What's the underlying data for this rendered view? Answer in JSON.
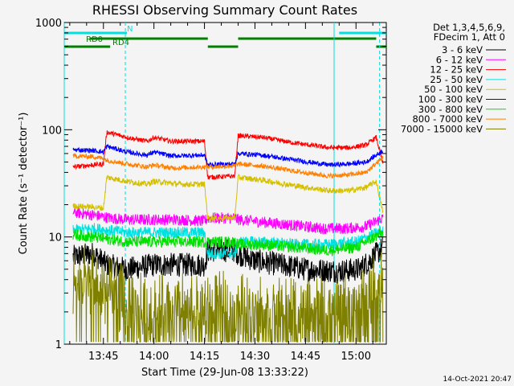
{
  "chart_data": {
    "type": "line",
    "title": "RHESSI Observing Summary Count Rates",
    "xlabel": "Start Time (29-Jun-08 13:33:22)",
    "ylabel": "Count Rate (s⁻¹ detector⁻¹)",
    "yscale": "log",
    "ylim": [
      1,
      1000
    ],
    "xlim": [
      "13:33:22",
      "15:09:00"
    ],
    "x_ticks": [
      "13:45",
      "14:00",
      "14:15",
      "14:30",
      "14:45",
      "15:00"
    ],
    "y_ticks": [
      "1",
      "10",
      "100",
      "1000"
    ],
    "legend_header": [
      "Det 1,3,4,5,6,9,",
      "FDecim 1, Att 0"
    ],
    "legend_position": "right",
    "timestamp": "14-Oct-2021 20:47",
    "flags": [
      {
        "label": "N",
        "color": "#00e0e0",
        "intervals": [
          [
            "13:33:22",
            "13:41:30"
          ],
          [
            "13:41:30",
            "13:52:00"
          ],
          [
            "14:55:00",
            "15:09:00"
          ]
        ]
      },
      {
        "label": "RD0",
        "color": "#007f00",
        "intervals": [
          [
            "13:41:00",
            "14:16:00"
          ],
          [
            "14:25:00",
            "15:06:00"
          ]
        ]
      },
      {
        "label": "RD4",
        "color": "#007f00",
        "intervals": [
          [
            "13:33:22",
            "13:47:00"
          ],
          [
            "14:16:00",
            "14:25:00"
          ],
          [
            "15:06:00",
            "15:09:00"
          ]
        ]
      }
    ],
    "vlines_solid": [
      "13:33:22",
      "14:53:30"
    ],
    "vlines_dashed": [
      "13:51:30",
      "15:07:00"
    ],
    "series": [
      {
        "name": "3 - 6 keV",
        "color": "#000000",
        "noise": 0.25,
        "points": [
          [
            "13:36",
            6.5
          ],
          [
            "13:42",
            7
          ],
          [
            "13:46",
            5.5
          ],
          [
            "13:52",
            5
          ],
          [
            "14:00",
            5.5
          ],
          [
            "14:08",
            5.5
          ],
          [
            "14:15",
            5.5
          ],
          [
            "14:16",
            7.5
          ],
          [
            "14:24",
            7.5
          ],
          [
            "14:25",
            7
          ],
          [
            "14:30",
            6
          ],
          [
            "14:38",
            5.5
          ],
          [
            "14:45",
            5
          ],
          [
            "14:55",
            4.8
          ],
          [
            "15:01",
            5
          ],
          [
            "15:04",
            6
          ],
          [
            "15:08",
            8
          ]
        ]
      },
      {
        "name": "6 - 12 keV",
        "color": "#ff00ff",
        "noise": 0.12,
        "points": [
          [
            "13:36",
            17
          ],
          [
            "13:42",
            16
          ],
          [
            "13:47",
            15
          ],
          [
            "13:52",
            14.5
          ],
          [
            "14:00",
            14.5
          ],
          [
            "14:08",
            14.5
          ],
          [
            "14:15",
            14
          ],
          [
            "14:16",
            15
          ],
          [
            "14:24",
            15
          ],
          [
            "14:25",
            14.5
          ],
          [
            "14:30",
            14
          ],
          [
            "14:40",
            13
          ],
          [
            "14:50",
            12
          ],
          [
            "14:57",
            12
          ],
          [
            "15:03",
            12.5
          ],
          [
            "15:08",
            15
          ]
        ]
      },
      {
        "name": "12 - 25 keV",
        "color": "#ff0000",
        "noise": 0.05,
        "points": [
          [
            "13:36",
            45
          ],
          [
            "13:42",
            47
          ],
          [
            "13:45",
            48
          ],
          [
            "13:46",
            95
          ],
          [
            "13:52",
            85
          ],
          [
            "13:58",
            78
          ],
          [
            "14:00",
            85
          ],
          [
            "14:05",
            78
          ],
          [
            "14:15",
            78
          ],
          [
            "14:16",
            36
          ],
          [
            "14:24",
            37
          ],
          [
            "14:25",
            88
          ],
          [
            "14:32",
            85
          ],
          [
            "14:42",
            75
          ],
          [
            "14:52",
            68
          ],
          [
            "14:58",
            68
          ],
          [
            "15:03",
            72
          ],
          [
            "15:06",
            85
          ],
          [
            "15:08",
            48
          ]
        ]
      },
      {
        "name": "25 - 50 keV",
        "color": "#00e0e0",
        "noise": 0.12,
        "points": [
          [
            "13:36",
            11.5
          ],
          [
            "13:42",
            12
          ],
          [
            "13:47",
            11.5
          ],
          [
            "13:52",
            11
          ],
          [
            "14:00",
            11
          ],
          [
            "14:08",
            11
          ],
          [
            "14:15",
            11
          ],
          [
            "14:16",
            7
          ],
          [
            "14:24",
            7
          ],
          [
            "14:25",
            9
          ],
          [
            "14:32",
            9
          ],
          [
            "14:42",
            8.5
          ],
          [
            "14:52",
            8.5
          ],
          [
            "15:00",
            9
          ],
          [
            "15:08",
            11.5
          ]
        ]
      },
      {
        "name": "50 - 100 keV",
        "color": "#d4c000",
        "noise": 0.06,
        "points": [
          [
            "13:36",
            19.5
          ],
          [
            "13:42",
            19
          ],
          [
            "13:45",
            18.5
          ],
          [
            "13:46",
            36
          ],
          [
            "13:52",
            33
          ],
          [
            "13:58",
            31
          ],
          [
            "14:00",
            33
          ],
          [
            "14:08",
            31
          ],
          [
            "14:15",
            31
          ],
          [
            "14:16",
            15
          ],
          [
            "14:24",
            15
          ],
          [
            "14:25",
            36
          ],
          [
            "14:32",
            34
          ],
          [
            "14:42",
            30
          ],
          [
            "14:52",
            27
          ],
          [
            "14:58",
            27
          ],
          [
            "15:03",
            29
          ],
          [
            "15:06",
            33
          ],
          [
            "15:08",
            17
          ]
        ]
      },
      {
        "name": "100 - 300 keV",
        "color": "#0000ff",
        "noise": 0.05,
        "points": [
          [
            "13:36",
            65
          ],
          [
            "13:42",
            64
          ],
          [
            "13:45",
            62
          ],
          [
            "13:46",
            70
          ],
          [
            "13:52",
            62
          ],
          [
            "13:58",
            58
          ],
          [
            "14:00",
            62
          ],
          [
            "14:05",
            57
          ],
          [
            "14:15",
            58
          ],
          [
            "14:16",
            47
          ],
          [
            "14:24",
            48
          ],
          [
            "14:25",
            60
          ],
          [
            "14:32",
            58
          ],
          [
            "14:42",
            52
          ],
          [
            "14:52",
            47
          ],
          [
            "14:58",
            48
          ],
          [
            "15:03",
            50
          ],
          [
            "15:08",
            64
          ]
        ]
      },
      {
        "name": "300 - 800 keV",
        "color": "#00e000",
        "noise": 0.12,
        "points": [
          [
            "13:36",
            10.5
          ],
          [
            "13:42",
            10
          ],
          [
            "13:47",
            9.5
          ],
          [
            "13:52",
            9
          ],
          [
            "14:00",
            9
          ],
          [
            "14:08",
            9
          ],
          [
            "14:15",
            9
          ],
          [
            "14:16",
            9
          ],
          [
            "14:24",
            9
          ],
          [
            "14:25",
            8.5
          ],
          [
            "14:32",
            8.5
          ],
          [
            "14:42",
            8
          ],
          [
            "14:52",
            7.5
          ],
          [
            "15:00",
            8
          ],
          [
            "15:08",
            11
          ]
        ]
      },
      {
        "name": "800 - 7000 keV",
        "color": "#ff8000",
        "noise": 0.05,
        "points": [
          [
            "13:36",
            57
          ],
          [
            "13:42",
            56
          ],
          [
            "13:45",
            54
          ],
          [
            "13:46",
            52
          ],
          [
            "13:52",
            48
          ],
          [
            "13:58",
            45
          ],
          [
            "14:00",
            47
          ],
          [
            "14:05",
            44
          ],
          [
            "14:15",
            45
          ],
          [
            "14:16",
            45
          ],
          [
            "14:24",
            46
          ],
          [
            "14:25",
            48
          ],
          [
            "14:32",
            46
          ],
          [
            "14:42",
            41
          ],
          [
            "14:52",
            37
          ],
          [
            "14:58",
            38
          ],
          [
            "15:03",
            40
          ],
          [
            "15:08",
            55
          ]
        ]
      },
      {
        "name": "7000 - 15000 keV",
        "color": "#808000",
        "noise": 0.35,
        "points": [
          [
            "13:36",
            3.2
          ],
          [
            "13:42",
            3.0
          ],
          [
            "13:47",
            2.6
          ],
          [
            "13:51",
            2.2
          ],
          [
            "13:52",
            1.7
          ],
          [
            "14:00",
            1.7
          ],
          [
            "14:15",
            1.7
          ],
          [
            "14:20",
            1.8
          ],
          [
            "14:30",
            1.7
          ],
          [
            "14:40",
            1.6
          ],
          [
            "14:50",
            1.6
          ],
          [
            "15:00",
            1.7
          ],
          [
            "15:04",
            2.2
          ],
          [
            "15:08",
            3.4
          ]
        ]
      }
    ]
  }
}
